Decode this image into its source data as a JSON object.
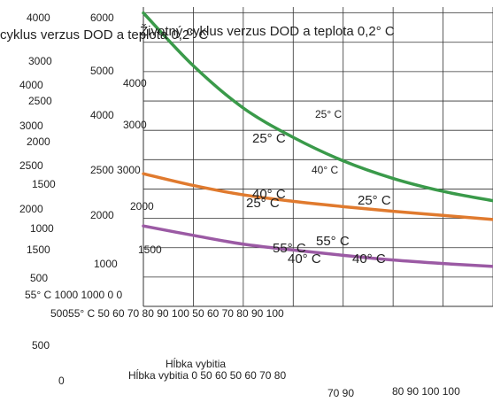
{
  "chart_data": {
    "type": "line",
    "title": "Životný cyklus verzus DOD a teplota 0,2° C",
    "title_overlap": "cyklus verzus DOD a teplota 0,2° C",
    "xlabel": "Hĺbka vybitia",
    "xlabel_overlap": "Hĺbka vybitia",
    "ylabel": "",
    "grid": true,
    "series": [
      {
        "name": "25° C",
        "color": "#3a9a4a",
        "points": [
          [
            0,
            6000
          ],
          [
            10,
            5100
          ],
          [
            20,
            4380
          ],
          [
            30,
            3880
          ],
          [
            40,
            3480
          ],
          [
            50,
            3180
          ],
          [
            60,
            2960
          ],
          [
            70,
            2800
          ]
        ]
      },
      {
        "name": "40° C",
        "color": "#e07a2e",
        "points": [
          [
            0,
            3260
          ],
          [
            10,
            3060
          ],
          [
            20,
            2900
          ],
          [
            30,
            2790
          ],
          [
            40,
            2700
          ],
          [
            50,
            2620
          ],
          [
            60,
            2550
          ],
          [
            70,
            2480
          ]
        ]
      },
      {
        "name": "55° C",
        "color": "#9b5aa4",
        "points": [
          [
            0,
            2370
          ],
          [
            10,
            2210
          ],
          [
            20,
            2060
          ],
          [
            30,
            1960
          ],
          [
            40,
            1870
          ],
          [
            50,
            1790
          ],
          [
            60,
            1730
          ],
          [
            70,
            1680
          ]
        ]
      }
    ],
    "annotations": [
      "25° C",
      "25° C",
      "25° C",
      "25° C",
      "40° C",
      "40° C",
      "40° C",
      "40° C",
      "55° C",
      "55° C"
    ],
    "stray_labels": [
      "4000",
      "3000",
      "4000",
      "2500",
      "3000",
      "2000",
      "2500",
      "1500",
      "2000",
      "1000",
      "1500",
      "500",
      "55° C 1000 1000 0 0",
      "6000",
      "5000",
      "4000",
      "4000",
      "3000",
      "2500 3000",
      "2000",
      "2000",
      "1500",
      "1000",
      "50055° C 50 60 70 80 90 100 50 60 70 80 90 100",
      "500",
      "0",
      "Hĺbka vybitia 0 50 60 50 60 70 80",
      "70 90",
      "80 90 100 100"
    ]
  }
}
